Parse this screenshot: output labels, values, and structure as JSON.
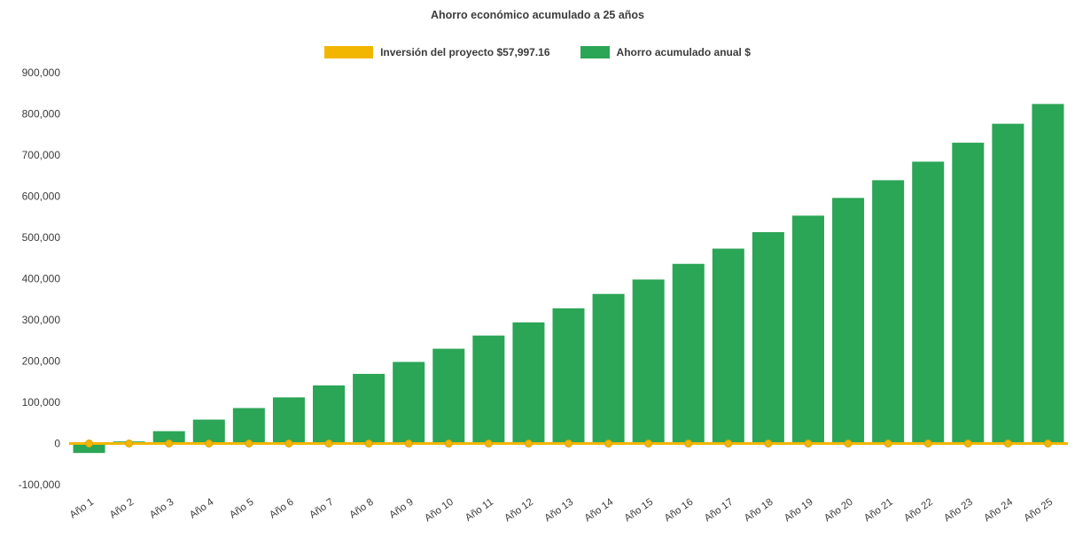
{
  "chart_data": {
    "type": "bar",
    "title": "Ahorro económico acumulado a 25 años",
    "xlabel": "",
    "ylabel": "",
    "grid": false,
    "legend_position": "top",
    "text_color": "#3C3C3C",
    "ylim": [
      -100000,
      900000
    ],
    "ytick_step": 100000,
    "ytick_labels": [
      "-100,000",
      "0",
      "100,000",
      "200,000",
      "300,000",
      "400,000",
      "500,000",
      "600,000",
      "700,000",
      "800,000",
      "900,000"
    ],
    "categories": [
      "Año 1",
      "Año 2",
      "Año 3",
      "Año 4",
      "Año 5",
      "Año 6",
      "Año 7",
      "Año 8",
      "Año 9",
      "Año 10",
      "Año 11",
      "Año 12",
      "Año 13",
      "Año 14",
      "Año 15",
      "Año 16",
      "Año 17",
      "Año 18",
      "Año 19",
      "Año 20",
      "Año 21",
      "Año 22",
      "Año 23",
      "Año 24",
      "Año 25"
    ],
    "series": [
      {
        "name": "Inversión del proyecto $57,997.16",
        "type": "line",
        "color": "#F2B600",
        "marker_stroke": "#D9A300",
        "marker": "circle",
        "values": [
          0,
          0,
          0,
          0,
          0,
          0,
          0,
          0,
          0,
          0,
          0,
          0,
          0,
          0,
          0,
          0,
          0,
          0,
          0,
          0,
          0,
          0,
          0,
          0,
          0
        ]
      },
      {
        "name": "Ahorro acumulado anual $",
        "type": "bar",
        "color": "#2BA556",
        "values": [
          -23000,
          5000,
          30000,
          58000,
          86000,
          112000,
          141000,
          169000,
          198000,
          230000,
          262000,
          294000,
          328000,
          363000,
          398000,
          436000,
          473000,
          513000,
          553000,
          596000,
          639000,
          684000,
          730000,
          776000,
          824000
        ]
      }
    ]
  }
}
